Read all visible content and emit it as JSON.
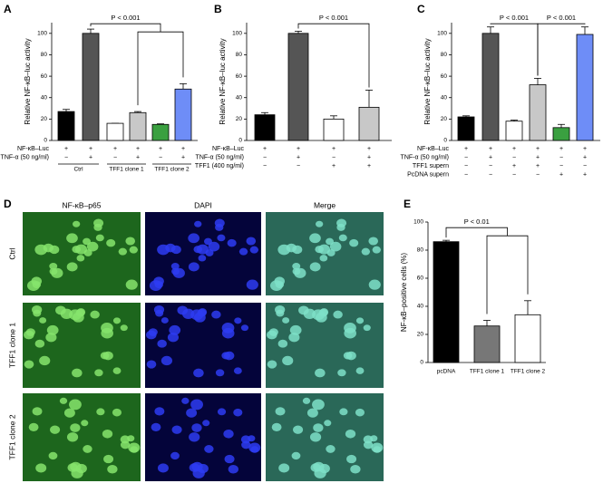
{
  "chart_data": [
    {
      "type": "bar",
      "label": "A",
      "ylabel": "Relative NF-κB–luc activity",
      "categories": [
        null,
        null,
        null,
        null,
        null,
        null
      ],
      "values": [
        27,
        100,
        16,
        26,
        15,
        48
      ],
      "errors": [
        2,
        4,
        0,
        1,
        0.5,
        5
      ],
      "colors": [
        "#000000",
        "#555555",
        "#ffffff",
        "#c8c8c8",
        "#3aa040",
        "#6e8df7"
      ],
      "ylim": [
        0,
        110
      ],
      "yticks": [
        0,
        20,
        40,
        60,
        80,
        100
      ],
      "conditions": [
        {
          "name": "NF-κB–Luc",
          "signs": [
            "+",
            "+",
            "+",
            "+",
            "+",
            "+"
          ]
        },
        {
          "name": "TNF-α (50 ng/ml)",
          "signs": [
            "−",
            "+",
            "−",
            "+",
            "−",
            "+"
          ]
        }
      ],
      "groups": [
        "Ctrl",
        "TFF1 clone 1",
        "TFF1 clone 2"
      ],
      "annotations": [
        "P < 0.001"
      ]
    },
    {
      "type": "bar",
      "label": "B",
      "ylabel": "Relative NF-κB–luc activity",
      "categories": [
        null,
        null,
        null,
        null
      ],
      "values": [
        24,
        100,
        20,
        31
      ],
      "errors": [
        2,
        2,
        3,
        16
      ],
      "colors": [
        "#000000",
        "#555555",
        "#ffffff",
        "#c8c8c8"
      ],
      "ylim": [
        0,
        110
      ],
      "yticks": [
        0,
        20,
        40,
        60,
        80,
        100
      ],
      "conditions": [
        {
          "name": "NF-κB–Luc",
          "signs": [
            "+",
            "+",
            "+",
            "+"
          ]
        },
        {
          "name": "TNF-α (50 ng/ml)",
          "signs": [
            "−",
            "+",
            "−",
            "+"
          ]
        },
        {
          "name": "TFF1 (400 ng/ml)",
          "signs": [
            "−",
            "−",
            "+",
            "+"
          ]
        }
      ],
      "annotations": [
        "P < 0.001"
      ]
    },
    {
      "type": "bar",
      "label": "C",
      "ylabel": "Relative NF-κB–luc activity",
      "categories": [
        null,
        null,
        null,
        null,
        null,
        null
      ],
      "values": [
        22,
        100,
        18,
        52,
        12,
        99
      ],
      "errors": [
        1,
        6,
        1,
        6,
        3,
        7
      ],
      "colors": [
        "#000000",
        "#555555",
        "#ffffff",
        "#c8c8c8",
        "#3aa040",
        "#6e8df7"
      ],
      "ylim": [
        0,
        110
      ],
      "yticks": [
        0,
        20,
        40,
        60,
        80,
        100
      ],
      "conditions": [
        {
          "name": "NF-κB–Luc",
          "signs": [
            "+",
            "+",
            "+",
            "+",
            "+",
            "+"
          ]
        },
        {
          "name": "TNF-α (50 ng/ml)",
          "signs": [
            "−",
            "+",
            "−",
            "+",
            "−",
            "+"
          ]
        },
        {
          "name": "TFF1 supern",
          "signs": [
            "−",
            "−",
            "+",
            "+",
            "−",
            "−"
          ]
        },
        {
          "name": "PcDNA supern",
          "signs": [
            "−",
            "−",
            "−",
            "−",
            "+",
            "+"
          ]
        }
      ],
      "annotations": [
        "P < 0.001",
        "P < 0.001"
      ]
    },
    {
      "type": "bar",
      "label": "E",
      "ylabel": "NF-κB–positive cells (%)",
      "categories": [
        "pcDNA",
        "TFF1 clone 1",
        "TFF1 clone 2"
      ],
      "values": [
        86,
        26,
        34
      ],
      "errors": [
        1,
        4,
        10
      ],
      "colors": [
        "#000000",
        "#777777",
        "#ffffff"
      ],
      "ylim": [
        0,
        100
      ],
      "yticks": [
        0,
        20,
        40,
        60,
        80,
        100
      ],
      "annotations": [
        "P < 0.01"
      ]
    }
  ],
  "panel_d": {
    "label": "D",
    "columns": [
      "NF-κB–p65",
      "DAPI",
      "Merge"
    ],
    "rows": [
      "Ctrl",
      "TFF1 clone 1",
      "TFF1 clone 2"
    ]
  }
}
